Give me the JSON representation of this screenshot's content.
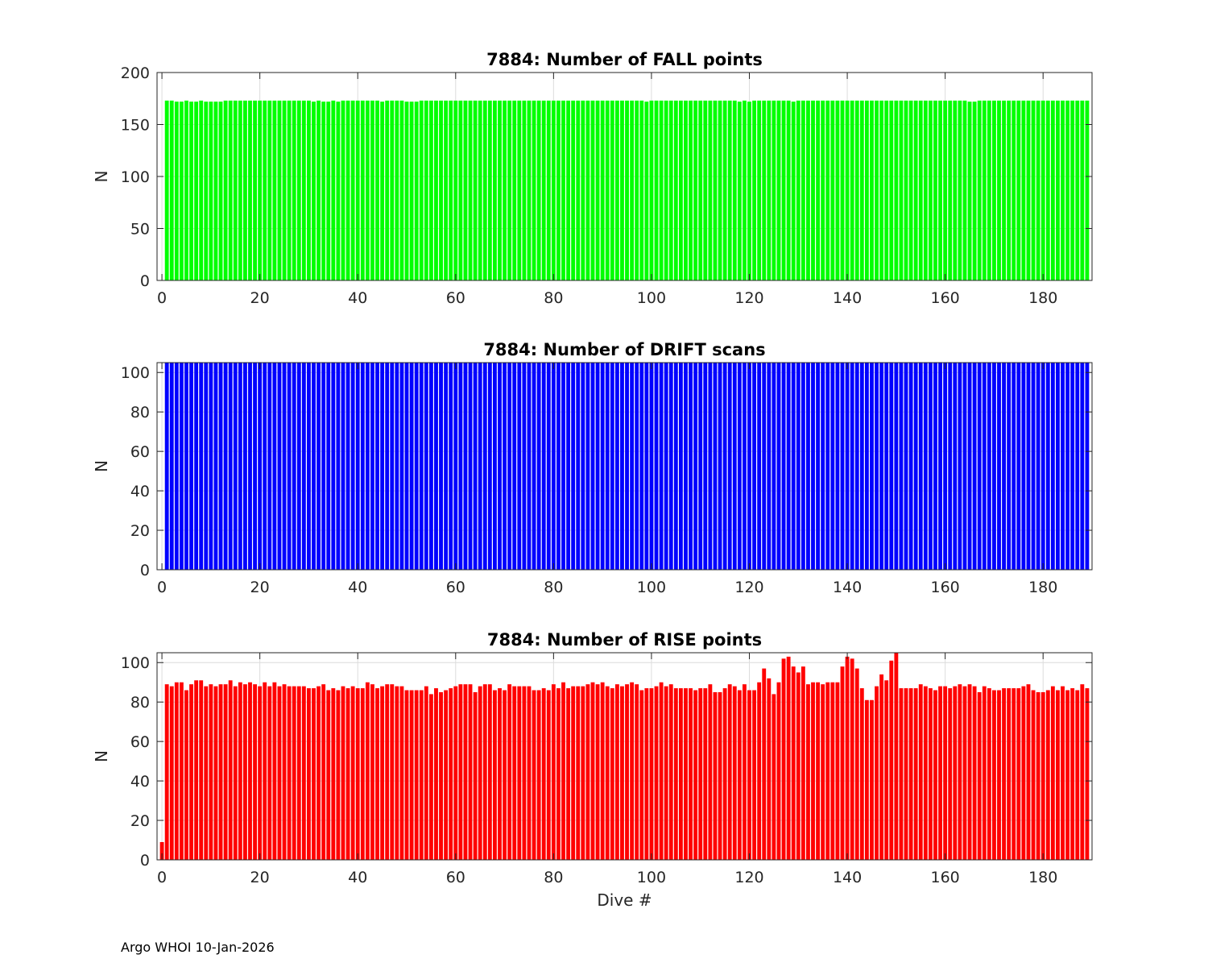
{
  "footer": "Argo WHOI 10-Jan-2026",
  "chart_data": [
    {
      "type": "bar",
      "title": "7884: Number of FALL points",
      "xlabel": "",
      "ylabel": "N",
      "xlim": [
        -1,
        190
      ],
      "ylim": [
        0,
        200
      ],
      "xticks": [
        0,
        20,
        40,
        60,
        80,
        100,
        120,
        140,
        160,
        180
      ],
      "yticks": [
        0,
        50,
        100,
        150,
        200
      ],
      "grid": true,
      "color": "#00ff00",
      "x_start": 1,
      "values": [
        173,
        173,
        172,
        172,
        173,
        172,
        172,
        173,
        172,
        172,
        172,
        172,
        173,
        173,
        173,
        173,
        173,
        173,
        173,
        173,
        173,
        173,
        173,
        173,
        173,
        173,
        173,
        173,
        173,
        173,
        172,
        173,
        172,
        172,
        173,
        172,
        173,
        173,
        173,
        173,
        173,
        173,
        173,
        173,
        172,
        173,
        173,
        173,
        173,
        172,
        172,
        172,
        173,
        173,
        173,
        173,
        173,
        173,
        173,
        173,
        173,
        173,
        173,
        173,
        173,
        173,
        173,
        173,
        173,
        173,
        173,
        173,
        173,
        173,
        173,
        173,
        173,
        173,
        173,
        173,
        173,
        173,
        173,
        173,
        173,
        173,
        173,
        173,
        173,
        173,
        173,
        173,
        173,
        173,
        173,
        173,
        173,
        173,
        172,
        173,
        173,
        173,
        173,
        173,
        173,
        173,
        173,
        173,
        173,
        173,
        173,
        173,
        173,
        173,
        173,
        173,
        173,
        172,
        173,
        172,
        173,
        173,
        173,
        173,
        173,
        173,
        173,
        173,
        172,
        173,
        173,
        173,
        173,
        173,
        173,
        173,
        173,
        173,
        173,
        173,
        173,
        173,
        173,
        173,
        173,
        173,
        173,
        173,
        173,
        173,
        173,
        173,
        173,
        173,
        173,
        173,
        173,
        173,
        173,
        173,
        173,
        173,
        173,
        173,
        172,
        172,
        173,
        173,
        173,
        173,
        173,
        173,
        173,
        173,
        173,
        173,
        173,
        173,
        173,
        173,
        173,
        173,
        173,
        173,
        173,
        173,
        173,
        173,
        173
      ]
    },
    {
      "type": "bar",
      "title": "7884: Number of DRIFT scans",
      "xlabel": "",
      "ylabel": "N",
      "xlim": [
        -1,
        190
      ],
      "ylim": [
        0,
        105
      ],
      "xticks": [
        0,
        20,
        40,
        60,
        80,
        100,
        120,
        140,
        160,
        180
      ],
      "yticks": [
        0,
        20,
        40,
        60,
        80,
        100
      ],
      "grid": true,
      "color": "#0000ff",
      "x_start": 1,
      "values": [
        105,
        105,
        105,
        105,
        105,
        105,
        105,
        105,
        105,
        105,
        105,
        105,
        105,
        105,
        105,
        105,
        105,
        105,
        105,
        105,
        105,
        105,
        105,
        105,
        105,
        105,
        105,
        105,
        105,
        105,
        105,
        105,
        105,
        105,
        105,
        105,
        105,
        105,
        105,
        105,
        105,
        105,
        105,
        105,
        105,
        105,
        105,
        105,
        105,
        105,
        105,
        105,
        105,
        105,
        105,
        105,
        105,
        105,
        105,
        105,
        105,
        105,
        105,
        105,
        105,
        105,
        105,
        105,
        105,
        105,
        105,
        105,
        105,
        105,
        105,
        105,
        105,
        105,
        105,
        105,
        105,
        105,
        105,
        105,
        105,
        105,
        105,
        105,
        105,
        105,
        105,
        105,
        105,
        105,
        105,
        105,
        105,
        105,
        105,
        105,
        105,
        105,
        105,
        105,
        105,
        105,
        105,
        105,
        105,
        105,
        105,
        105,
        105,
        105,
        105,
        105,
        105,
        105,
        105,
        105,
        105,
        105,
        105,
        105,
        105,
        105,
        105,
        105,
        105,
        105,
        105,
        105,
        105,
        105,
        105,
        105,
        105,
        105,
        105,
        105,
        105,
        105,
        105,
        105,
        105,
        105,
        105,
        105,
        105,
        105,
        105,
        105,
        105,
        105,
        105,
        105,
        105,
        105,
        105,
        105,
        105,
        105,
        105,
        105,
        105,
        105,
        105,
        105,
        105,
        105,
        105,
        105,
        105,
        105,
        105,
        105,
        105,
        105,
        105,
        105,
        105,
        105,
        105,
        105,
        105,
        105,
        105,
        105,
        105
      ]
    },
    {
      "type": "bar",
      "title": "7884: Number of RISE points",
      "xlabel": "Dive #",
      "ylabel": "N",
      "xlim": [
        -1,
        190
      ],
      "ylim": [
        0,
        105
      ],
      "xticks": [
        0,
        20,
        40,
        60,
        80,
        100,
        120,
        140,
        160,
        180
      ],
      "yticks": [
        0,
        20,
        40,
        60,
        80,
        100
      ],
      "grid": true,
      "color": "#ff0000",
      "x_start": 0,
      "values": [
        9,
        89,
        88,
        90,
        90,
        86,
        89,
        91,
        91,
        88,
        89,
        88,
        89,
        89,
        91,
        88,
        90,
        89,
        90,
        89,
        88,
        90,
        88,
        90,
        88,
        89,
        88,
        88,
        88,
        88,
        87,
        87,
        88,
        89,
        86,
        87,
        86,
        88,
        87,
        88,
        87,
        87,
        90,
        89,
        87,
        88,
        89,
        89,
        88,
        88,
        86,
        86,
        86,
        86,
        88,
        84,
        87,
        85,
        86,
        87,
        88,
        89,
        89,
        89,
        85,
        88,
        89,
        89,
        86,
        87,
        86,
        89,
        88,
        88,
        88,
        88,
        86,
        86,
        87,
        86,
        89,
        87,
        90,
        87,
        88,
        88,
        88,
        89,
        90,
        89,
        90,
        88,
        87,
        89,
        88,
        89,
        90,
        89,
        86,
        87,
        87,
        88,
        90,
        88,
        89,
        87,
        87,
        87,
        87,
        86,
        87,
        87,
        89,
        85,
        85,
        87,
        89,
        88,
        86,
        89,
        86,
        86,
        90,
        97,
        92,
        84,
        90,
        102,
        103,
        98,
        95,
        98,
        89,
        90,
        90,
        89,
        90,
        90,
        90,
        98,
        103,
        102,
        97,
        87,
        81,
        81,
        88,
        94,
        91,
        101,
        105,
        87,
        87,
        87,
        87,
        89,
        88,
        87,
        86,
        88,
        88,
        87,
        88,
        89,
        88,
        89,
        88,
        85,
        88,
        87,
        86,
        86,
        87,
        87,
        87,
        87,
        88,
        89,
        86,
        85,
        85,
        86,
        88,
        86,
        88,
        86,
        87,
        86,
        89,
        87
      ]
    }
  ]
}
